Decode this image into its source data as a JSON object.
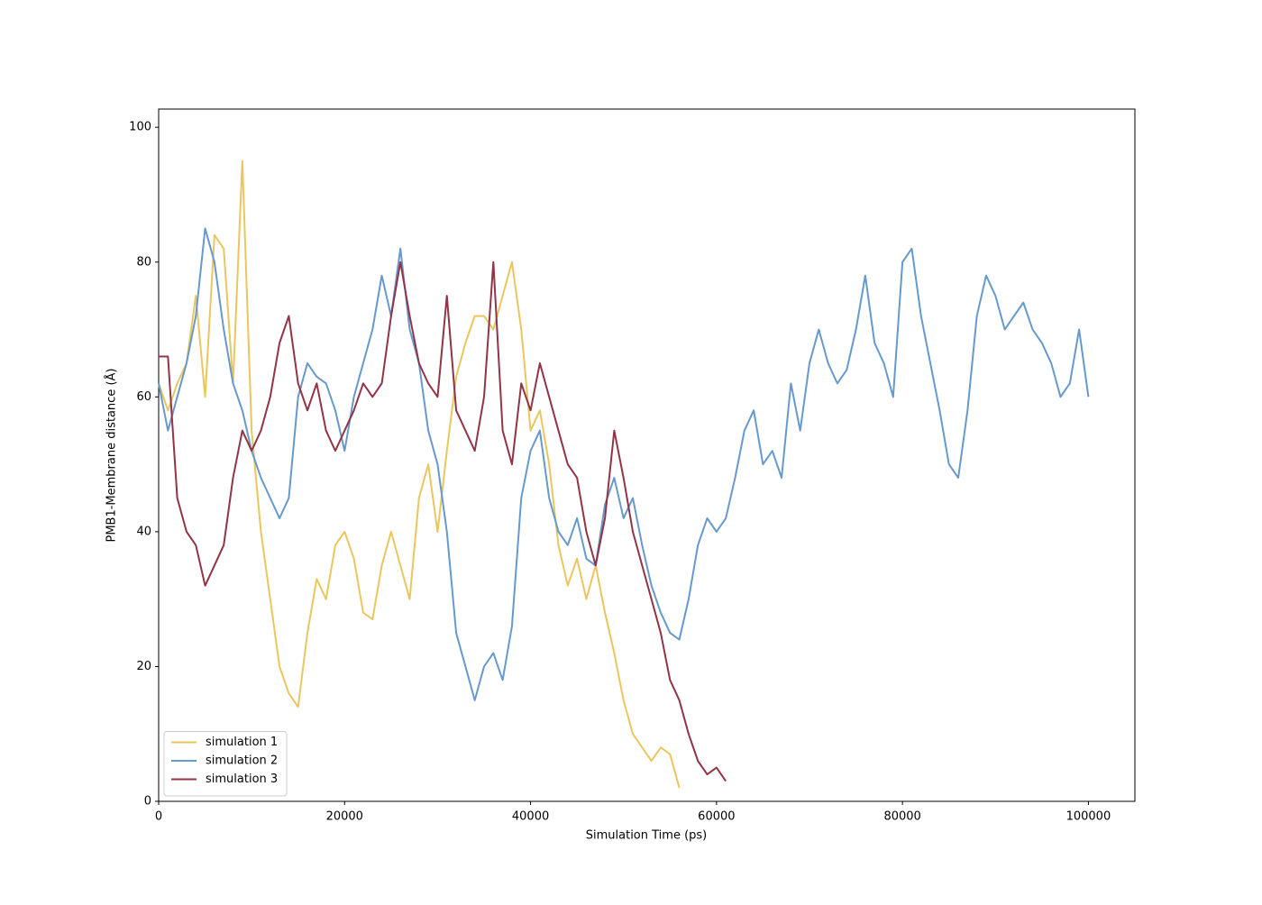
{
  "chart_data": {
    "type": "line",
    "xlabel": "Simulation Time (ps)",
    "ylabel": "PMB1-Membrane distance (Å)",
    "xlim": [
      0,
      105000
    ],
    "ylim": [
      0,
      102.7
    ],
    "xticks": [
      0,
      20000,
      40000,
      60000,
      80000,
      100000
    ],
    "yticks": [
      0,
      20,
      40,
      60,
      80,
      100
    ],
    "legend": "lower left",
    "x": [
      0,
      1000,
      2000,
      3000,
      4000,
      5000,
      6000,
      7000,
      8000,
      9000,
      10000,
      11000,
      12000,
      13000,
      14000,
      15000,
      16000,
      17000,
      18000,
      19000,
      20000,
      21000,
      22000,
      23000,
      24000,
      25000,
      26000,
      27000,
      28000,
      29000,
      30000,
      31000,
      32000,
      33000,
      34000,
      35000,
      36000,
      37000,
      38000,
      39000,
      40000,
      41000,
      42000,
      43000,
      44000,
      45000,
      46000,
      47000,
      48000,
      49000,
      50000,
      51000,
      52000,
      53000,
      54000,
      55000,
      56000,
      57000,
      58000,
      59000,
      60000,
      61000,
      62000,
      63000,
      64000,
      65000,
      66000,
      67000,
      68000,
      69000,
      70000,
      71000,
      72000,
      73000,
      74000,
      75000,
      76000,
      77000,
      78000,
      79000,
      80000,
      81000,
      82000,
      83000,
      84000,
      85000,
      86000,
      87000,
      88000,
      89000,
      90000,
      91000,
      92000,
      93000,
      94000,
      95000,
      96000,
      97000,
      98000,
      99000,
      100000
    ],
    "series": [
      {
        "name": "simulation 1",
        "color": "#ebc65e",
        "values": [
          62,
          58,
          62,
          65,
          75,
          60,
          84,
          82,
          62,
          95,
          55,
          40,
          30,
          20,
          16,
          14,
          25,
          33,
          30,
          38,
          40,
          36,
          28,
          27,
          35,
          40,
          35,
          30,
          45,
          50,
          40,
          52,
          63,
          68,
          72,
          72,
          70,
          75,
          80,
          70,
          55,
          58,
          50,
          38,
          32,
          36,
          30,
          35,
          28,
          22,
          15,
          10,
          8,
          6,
          8,
          7,
          2,
          null,
          null,
          null,
          null,
          null,
          null,
          null,
          null,
          null,
          null,
          null,
          null,
          null,
          null,
          null,
          null,
          null,
          null,
          null,
          null,
          null,
          null,
          null,
          null,
          null,
          null,
          null,
          null,
          null,
          null,
          null,
          null,
          null,
          null,
          null,
          null,
          null,
          null,
          null,
          null,
          null,
          null,
          null,
          null
        ]
      },
      {
        "name": "simulation 2",
        "color": "#6699cc",
        "values": [
          62,
          55,
          60,
          65,
          72,
          85,
          80,
          70,
          62,
          58,
          52,
          48,
          45,
          42,
          45,
          60,
          65,
          63,
          62,
          58,
          52,
          60,
          65,
          70,
          78,
          72,
          82,
          70,
          65,
          55,
          50,
          40,
          25,
          20,
          15,
          20,
          22,
          18,
          26,
          45,
          52,
          55,
          45,
          40,
          38,
          42,
          36,
          35,
          44,
          48,
          42,
          45,
          38,
          32,
          28,
          25,
          24,
          30,
          38,
          42,
          40,
          42,
          48,
          55,
          58,
          50,
          52,
          48,
          62,
          55,
          65,
          70,
          65,
          62,
          64,
          70,
          78,
          68,
          65,
          60,
          80,
          82,
          72,
          65,
          58,
          50,
          48,
          58,
          72,
          78,
          75,
          70,
          72,
          74,
          70,
          68,
          65,
          60,
          62,
          70,
          60
        ]
      },
      {
        "name": "simulation 3",
        "color": "#913446",
        "values": [
          66,
          66,
          45,
          40,
          38,
          32,
          35,
          38,
          48,
          55,
          52,
          55,
          60,
          68,
          72,
          62,
          58,
          62,
          55,
          52,
          55,
          58,
          62,
          60,
          62,
          72,
          80,
          72,
          65,
          62,
          60,
          75,
          58,
          55,
          52,
          60,
          80,
          55,
          50,
          62,
          58,
          65,
          60,
          55,
          50,
          48,
          40,
          35,
          42,
          55,
          48,
          40,
          35,
          30,
          25,
          18,
          15,
          10,
          6,
          4,
          5,
          3,
          null,
          null,
          null,
          null,
          null,
          null,
          null,
          null,
          null,
          null,
          null,
          null,
          null,
          null,
          null,
          null,
          null,
          null,
          null,
          null,
          null,
          null,
          null,
          null,
          null,
          null,
          null,
          null,
          null,
          null,
          null,
          null,
          null,
          null,
          null,
          null,
          null,
          null,
          null
        ]
      }
    ]
  }
}
